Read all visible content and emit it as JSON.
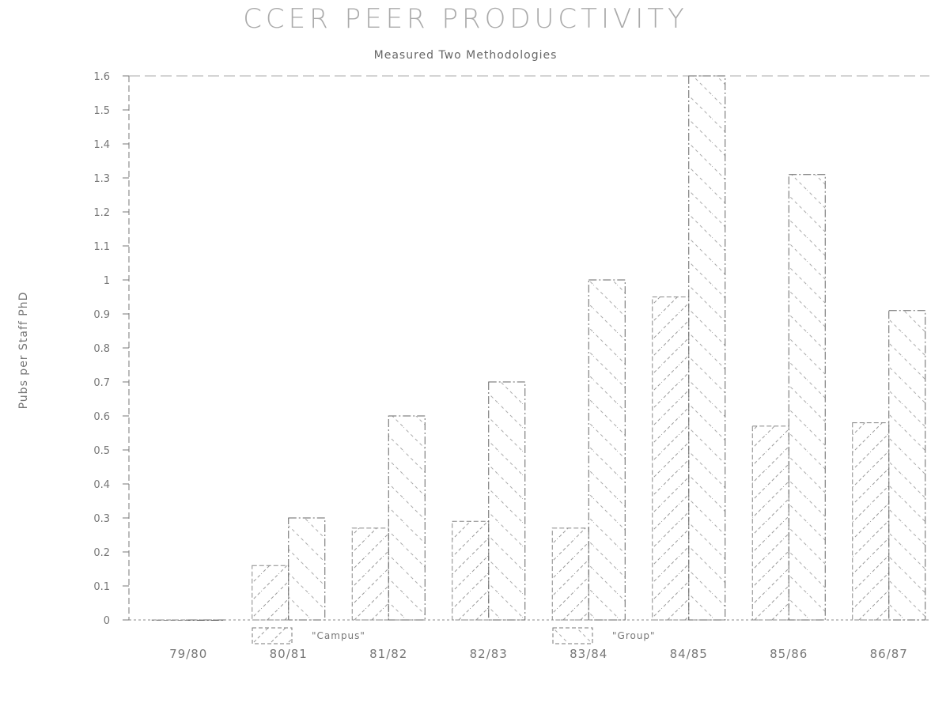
{
  "chart_data": {
    "type": "bar",
    "title": "CCER PEER PRODUCTIVITY",
    "subtitle": "Measured Two Methodologies",
    "ylabel": "Pubs per Staff PhD",
    "xlabel": "",
    "categories": [
      "79/80",
      "80/81",
      "81/82",
      "82/83",
      "83/84",
      "84/85",
      "85/86",
      "86/87"
    ],
    "ylim": [
      0,
      1.6
    ],
    "yticks": [
      "0",
      "0.1",
      "0.2",
      "0.3",
      "0.4",
      "0.5",
      "0.6",
      "0.7",
      "0.8",
      "0.9",
      "1",
      "1.1",
      "1.2",
      "1.3",
      "1.4",
      "1.5",
      "1.6"
    ],
    "series": [
      {
        "name": "\"Campus\"",
        "values": [
          0.0,
          0.16,
          0.27,
          0.29,
          0.27,
          0.95,
          0.57,
          0.58
        ],
        "pattern": "hatch-forward"
      },
      {
        "name": "\"Group\"",
        "values": [
          0.0,
          0.3,
          0.6,
          0.7,
          1.0,
          1.6,
          1.31,
          0.91
        ],
        "pattern": "hatch-backward"
      }
    ],
    "grid": false,
    "legend_position": "bottom"
  },
  "colors": {
    "ink": "#555555",
    "frame": "#777777",
    "hatch": "#999999"
  }
}
